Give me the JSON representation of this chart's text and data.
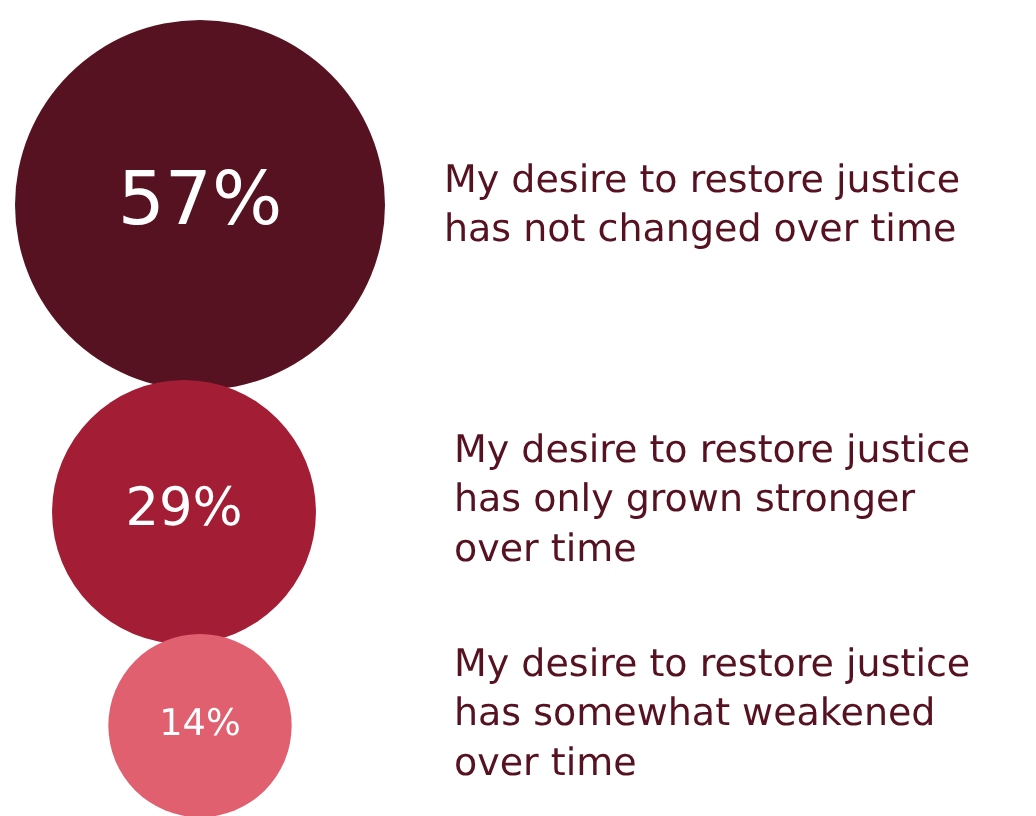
{
  "chart_data": {
    "type": "other",
    "categories": [
      "My desire to restore justice\nhas not changed over time",
      "My desire to restore justice\nhas only grown stronger\nover time",
      "My desire to restore justice\nhas somewhat weakened\nover time"
    ],
    "values": [
      57,
      29,
      14
    ],
    "value_labels": [
      "57%",
      "29%",
      "14%"
    ],
    "colors": [
      "#561220",
      "#a31d35",
      "#e06070"
    ],
    "legend": false
  }
}
